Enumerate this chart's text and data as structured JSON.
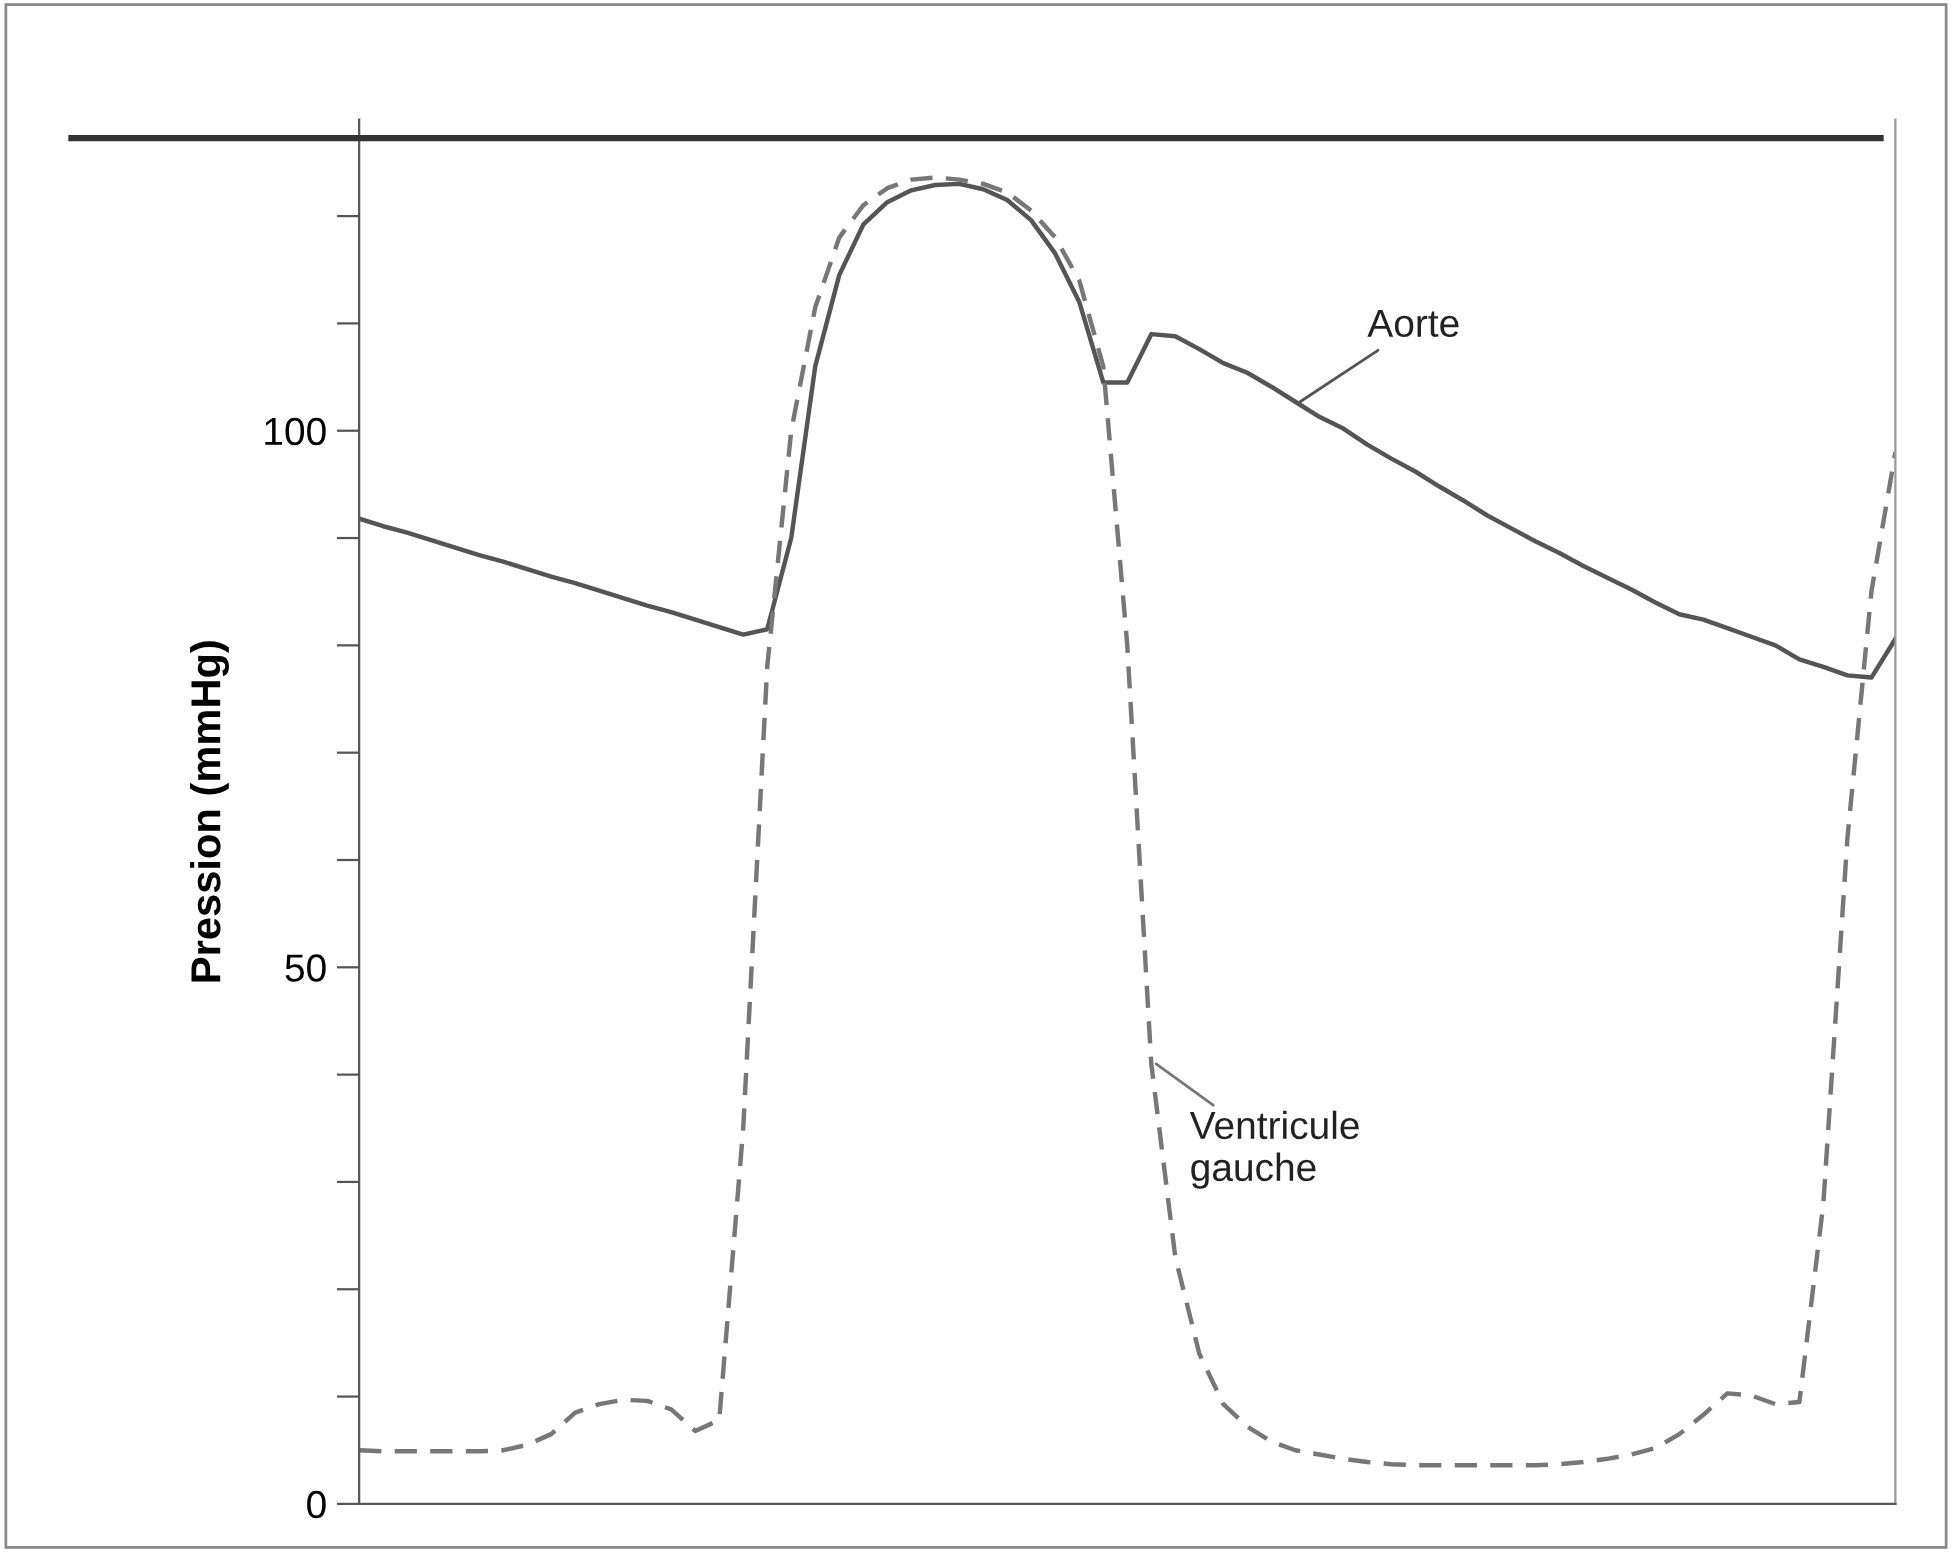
{
  "chart_data": {
    "type": "line",
    "ylabel": "Pression (mmHg)",
    "categories": [
      null,
      null,
      null,
      null,
      null,
      null,
      null,
      null,
      null,
      null,
      null,
      null,
      null,
      null,
      null,
      null,
      null,
      null,
      null,
      null,
      null,
      null,
      null,
      null,
      null,
      null,
      null,
      null,
      null,
      null,
      null,
      null,
      null,
      null,
      null,
      null,
      null,
      null,
      null,
      null,
      null,
      null,
      null,
      null,
      null,
      null,
      null,
      null,
      null,
      null,
      null,
      null,
      null,
      null,
      null,
      null,
      null,
      null,
      null,
      null,
      null,
      null,
      null,
      null,
      null
    ],
    "ylim": [
      0,
      129
    ],
    "yticks": [
      0,
      {
        "value": 10,
        "label": null
      },
      {
        "value": 20,
        "label": null
      },
      {
        "value": 30,
        "label": null
      },
      {
        "value": 40,
        "label": null
      },
      50,
      {
        "value": 60,
        "label": null
      },
      {
        "value": 70,
        "label": null
      },
      {
        "value": 80,
        "label": null
      },
      {
        "value": 90,
        "label": null
      },
      100,
      {
        "value": 110,
        "label": null
      },
      {
        "value": 120,
        "label": null
      }
    ],
    "tick_labels": "y",
    "marker": "none",
    "series": [
      {
        "name": "Aorte",
        "color": "#555555",
        "line_style": "solid",
        "values": [
          91.8,
          91.1,
          90.5,
          89.8,
          89.1,
          88.4,
          87.8,
          87.1,
          86.4,
          85.8,
          85.1,
          84.4,
          83.7,
          83.1,
          82.4,
          81.7,
          81.0,
          81.5,
          90,
          106,
          114.5,
          119.2,
          121.3,
          122.4,
          122.9,
          123,
          122.5,
          121.5,
          119.6,
          116.5,
          112,
          104.5,
          104.5,
          109,
          108.8,
          107.6,
          106.3,
          105.4,
          104.1,
          102.7,
          101.3,
          100.2,
          98.7,
          97.4,
          96.2,
          94.8,
          93.5,
          92.1,
          90.9,
          89.7,
          88.6,
          87.4,
          86.3,
          85.2,
          84.0,
          82.9,
          82.4,
          81.6,
          80.8,
          80.0,
          78.7,
          78.0,
          77.2,
          77.0,
          80.6
        ]
      },
      {
        "name": "Ventricule\ngauche",
        "color": "#777777",
        "line_style": "dashed",
        "values": [
          5.0,
          4.9,
          4.9,
          4.9,
          4.9,
          4.9,
          5.0,
          5.5,
          6.5,
          8.5,
          9.3,
          9.7,
          9.6,
          8.8,
          6.8,
          7.8,
          35,
          78,
          100,
          111.5,
          118,
          121,
          122.6,
          123.4,
          123.6,
          123.4,
          123,
          122.2,
          120.5,
          118,
          114,
          106,
          80,
          41,
          23,
          14,
          9.3,
          7.2,
          5.8,
          5.0,
          4.6,
          4.2,
          3.9,
          3.7,
          3.6,
          3.6,
          3.6,
          3.6,
          3.6,
          3.6,
          3.7,
          3.9,
          4.2,
          4.6,
          5.2,
          6.5,
          8.3,
          10.3,
          10.1,
          9.3,
          9.5,
          28,
          62,
          85,
          98
        ]
      }
    ]
  }
}
